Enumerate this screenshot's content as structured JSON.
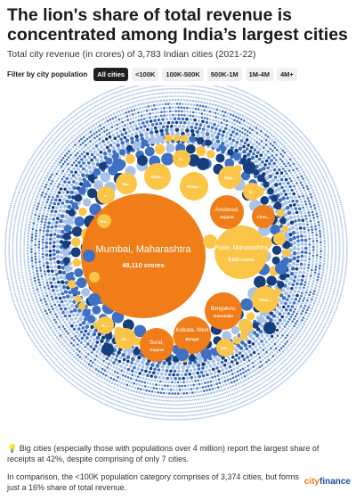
{
  "title": "The lion's share of total revenue is concentrated among India’s largest cities",
  "subtitle": "Total city revenue (in crores) of 3,783 Indian cities (2021-22)",
  "filter": {
    "label": "Filter by city population",
    "options": [
      "All cities",
      "<100K",
      "100K-500K",
      "500K-1M",
      "1M-4M",
      "4M+"
    ],
    "selected": "All cities"
  },
  "colors": {
    "largest": "#f07d17",
    "large": "#fbc548",
    "mid": "#173e7c",
    "small": "#3e70c4",
    "tiny": "#a9c3e8"
  },
  "chart_data": {
    "type": "bubble",
    "title": "The lion's share of total revenue is concentrated among India’s largest cities",
    "unit": "crores",
    "labeled_bubbles": [
      {
        "name": "Mumbai, Maharashtra",
        "value": 48110,
        "value_label": "48,110 crores"
      },
      {
        "name": "Pune, Maharashtra",
        "value": 9563,
        "value_label": "9,563 crores"
      },
      {
        "name": "Amdavad, Gujarat",
        "label": "Amdavad,",
        "sub": "Gujarat"
      },
      {
        "name": "Bengaluru, Karnataka",
        "label": "Bengaluru,",
        "sub": "Karnataka"
      },
      {
        "name": "Kolkata, West Bengal",
        "label": "Kolkata, West",
        "sub": "Bengal"
      },
      {
        "name": "Surat, Gujarat",
        "label": "Surat,",
        "sub": "Gujarat"
      },
      {
        "name": "Chennai",
        "label": "Chen..."
      },
      {
        "name": "Hyderabad",
        "label": "Hyde..."
      },
      {
        "name": "Pimpri",
        "label": "Pimpr..."
      },
      {
        "name": "Nagpur",
        "label": "Nag..."
      },
      {
        "name": "Thane",
        "label": "Than..."
      },
      {
        "name": "Nashik",
        "label": "Na..."
      },
      {
        "name": "V1",
        "label": "V..."
      },
      {
        "name": "V2",
        "label": "V..."
      },
      {
        "name": "I1",
        "label": "I..."
      },
      {
        "name": "In",
        "label": "In..."
      },
      {
        "name": "K",
        "label": "K..."
      },
      {
        "name": "Na2",
        "label": "Na..."
      },
      {
        "name": "Nx",
        "label": "Nx..."
      }
    ]
  },
  "notes": {
    "note1": "💡 Big cities (especially those with populations over 4 million) report the largest share of receipts at 42%, despite comprising of only 7 cities.",
    "note2": "In comparison, the <100K population category comprises of 3,374 cities, but forms just a 16% share of total revenue."
  },
  "brand": {
    "part1": "city",
    "part2": "finance"
  }
}
